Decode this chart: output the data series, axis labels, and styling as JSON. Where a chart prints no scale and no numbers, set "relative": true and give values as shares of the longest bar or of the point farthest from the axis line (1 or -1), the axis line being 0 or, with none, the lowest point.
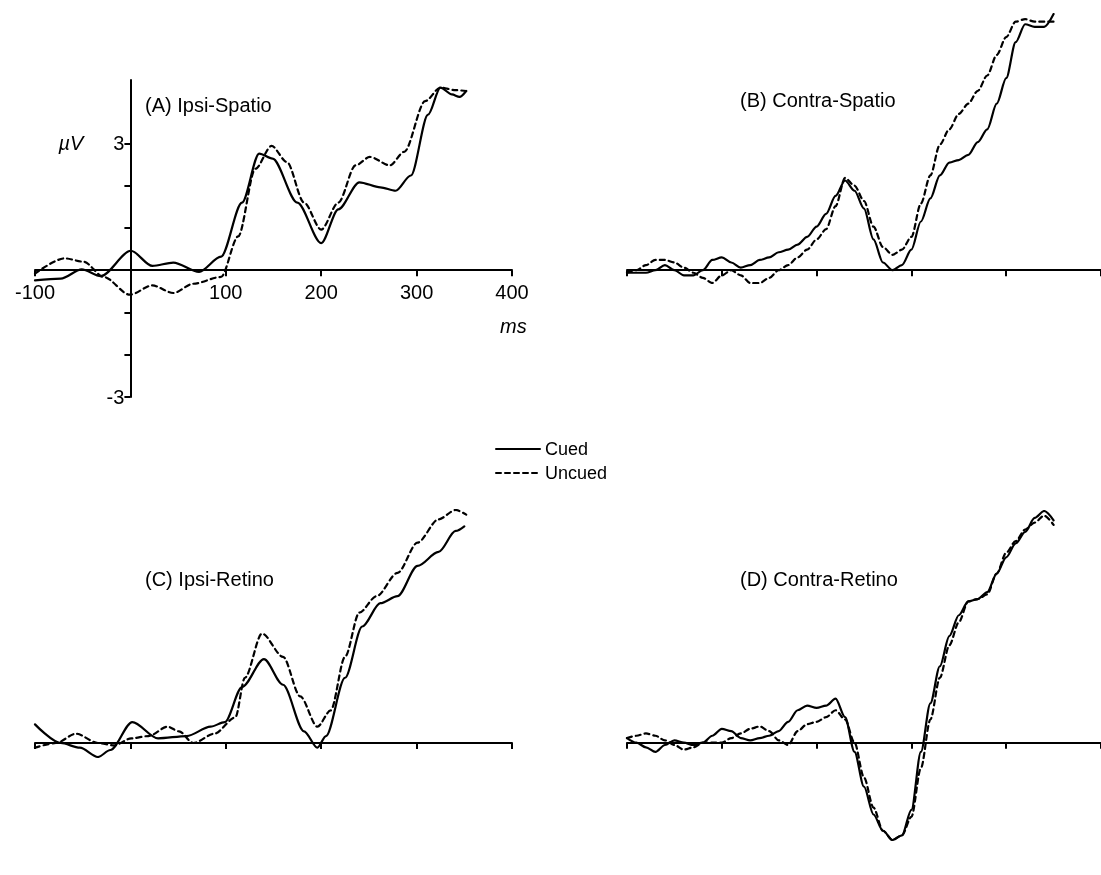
{
  "chart_data": [
    {
      "type": "line",
      "title": "(A) Ipsi-Spatio",
      "xlabel": "ms",
      "ylabel": "µV",
      "xlim": [
        -100,
        400
      ],
      "ylim": [
        -3,
        4.5
      ],
      "xticks": [
        -100,
        {
          "value": 0,
          "label": null
        },
        100,
        200,
        300,
        400
      ],
      "yticks": [
        -3,
        {
          "value": -2,
          "label": null
        },
        {
          "value": -1,
          "label": null
        },
        {
          "value": 0,
          "label": null
        },
        {
          "value": 1,
          "label": null
        },
        {
          "value": 2,
          "label": null
        },
        3
      ],
      "legend": "bottom right",
      "marker": "none",
      "series": [
        {
          "name": "Cued",
          "color": "#000000",
          "line_style": "solid",
          "x": [
            -100,
            -73,
            -51,
            -31,
            0.5,
            23,
            45,
            72,
            95,
            117,
            135,
            149,
            175,
            200,
            218,
            240,
            262,
            278,
            294,
            312,
            325,
            337,
            345,
            352
          ],
          "values": [
            -0.24,
            -0.2,
            0.02,
            -0.14,
            0.46,
            0.1,
            0.18,
            -0.04,
            0.32,
            1.6,
            2.76,
            2.64,
            1.6,
            0.64,
            1.44,
            2.08,
            1.96,
            1.88,
            2.24,
            3.68,
            4.32,
            4.16,
            4.1,
            4.24
          ]
        },
        {
          "name": "Uncued",
          "color": "#000000",
          "line_style": "dashed",
          "x": [
            -100,
            -69,
            -49,
            -28,
            -0.6,
            23,
            45,
            66,
            95,
            113,
            131,
            148,
            164,
            182,
            200,
            218,
            236,
            251,
            272,
            287,
            309,
            325,
            341,
            352
          ],
          "values": [
            -0.08,
            0.28,
            0.2,
            -0.16,
            -0.58,
            -0.36,
            -0.54,
            -0.32,
            -0.16,
            0.8,
            2.4,
            2.94,
            2.56,
            1.6,
            0.96,
            1.6,
            2.48,
            2.68,
            2.48,
            2.8,
            4.0,
            4.32,
            4.26,
            4.24
          ]
        }
      ]
    },
    {
      "type": "line",
      "title": "(B) Contra-Spatio",
      "relative": true,
      "tick_labels": false,
      "marker": "none",
      "categories": [
        null,
        null,
        null,
        null,
        null,
        null,
        null,
        null,
        null,
        null,
        null,
        null,
        null,
        null,
        null,
        null,
        null,
        null,
        null,
        null,
        null,
        null,
        null,
        null,
        null,
        null,
        null,
        null,
        null,
        null,
        null,
        null,
        null,
        null,
        null,
        null,
        null,
        null,
        null,
        null,
        null,
        null,
        null,
        null,
        null,
        null,
        null,
        null,
        null,
        null,
        null
      ],
      "series": [
        {
          "color": "#000000",
          "line_style": "solid",
          "values": [
            -0.01,
            -0.01,
            -0.01,
            0.0,
            0.02,
            0.0,
            -0.02,
            -0.02,
            0.0,
            0.04,
            0.05,
            0.03,
            0.01,
            0.02,
            0.04,
            0.05,
            0.07,
            0.08,
            0.1,
            0.13,
            0.17,
            0.22,
            0.29,
            0.35,
            0.31,
            0.24,
            0.12,
            0.03,
            0.0,
            0.02,
            0.08,
            0.19,
            0.28,
            0.37,
            0.42,
            0.43,
            0.45,
            0.5,
            0.55,
            0.65,
            0.75,
            0.89,
            0.96,
            0.95,
            0.95,
            1,
            null,
            null,
            null,
            null,
            null
          ]
        },
        {
          "color": "#000000",
          "line_style": "dashed",
          "values": [
            -0.01,
            0.0,
            0.02,
            0.04,
            0.04,
            0.03,
            0.01,
            -0.01,
            -0.03,
            -0.05,
            -0.02,
            0.0,
            -0.02,
            -0.05,
            -0.05,
            -0.03,
            0.0,
            0.02,
            0.05,
            0.08,
            0.12,
            0.16,
            0.25,
            0.36,
            0.33,
            0.27,
            0.17,
            0.09,
            0.06,
            0.08,
            0.13,
            0.26,
            0.37,
            0.49,
            0.55,
            0.61,
            0.65,
            0.7,
            0.76,
            0.84,
            0.91,
            0.97,
            0.98,
            0.97,
            0.97,
            0.97,
            null,
            null,
            null,
            null,
            null
          ]
        }
      ]
    },
    {
      "type": "line",
      "title": "(C) Ipsi-Retino",
      "relative": true,
      "xlim": [
        -100,
        400
      ],
      "tick_labels": false,
      "xticks": [
        -100,
        0,
        100,
        200,
        300,
        400
      ],
      "marker": "none",
      "series": [
        {
          "color": "#000000",
          "line_style": "solid",
          "x": [
            -100,
            -73,
            -53,
            -34,
            -21,
            2,
            29,
            59,
            84,
            99,
            117,
            140,
            160,
            182,
            196,
            205,
            225,
            243,
            262,
            280,
            301,
            323,
            341,
            350
          ],
          "values": [
            0.08,
            0,
            -0.02,
            -0.06,
            -0.03,
            0.09,
            0.02,
            0.03,
            0.07,
            0.09,
            0.24,
            0.36,
            0.25,
            0.05,
            -0.02,
            0.03,
            0.28,
            0.5,
            0.6,
            0.63,
            0.76,
            0.82,
            0.91,
            0.93
          ]
        },
        {
          "color": "#000000",
          "line_style": "dashed",
          "x": [
            -100,
            -78,
            -57,
            -34,
            -17,
            1,
            19,
            39,
            51,
            66,
            88,
            110,
            120,
            138,
            160,
            178,
            196,
            210,
            225,
            240,
            258,
            280,
            301,
            323,
            341,
            352
          ],
          "values": [
            -0.02,
            0.0,
            0.04,
            0,
            -0.01,
            0.02,
            0.03,
            0.07,
            0.05,
            0.0,
            0.04,
            0.11,
            0.28,
            0.47,
            0.37,
            0.2,
            0.07,
            0.14,
            0.37,
            0.56,
            0.63,
            0.73,
            0.86,
            0.96,
            1,
            0.98
          ]
        }
      ]
    },
    {
      "type": "line",
      "title": "(D) Contra-Retino",
      "relative": true,
      "tick_labels": false,
      "marker": "none",
      "categories": [
        null,
        null,
        null,
        null,
        null,
        null,
        null,
        null,
        null,
        null,
        null,
        null,
        null,
        null,
        null,
        null,
        null,
        null,
        null,
        null,
        null,
        null,
        null,
        null,
        null,
        null,
        null,
        null,
        null,
        null,
        null,
        null,
        null,
        null,
        null,
        null,
        null,
        null,
        null,
        null,
        null,
        null,
        null,
        null,
        null,
        null,
        null,
        null,
        null,
        null,
        null
      ],
      "series": [
        {
          "color": "#000000",
          "line_style": "solid",
          "values": [
            0.02,
            0.0,
            -0.02,
            -0.04,
            -0.01,
            0.01,
            0.0,
            -0.01,
            0.0,
            0.03,
            0.06,
            0.05,
            0.02,
            0.01,
            0.02,
            0.03,
            0.05,
            0.09,
            0.14,
            0.16,
            0.15,
            0.16,
            0.19,
            0.11,
            -0.04,
            -0.19,
            -0.31,
            -0.38,
            -0.42,
            -0.4,
            -0.29,
            -0.04,
            0.17,
            0.33,
            0.46,
            0.55,
            0.61,
            0.62,
            0.65,
            0.73,
            0.8,
            0.86,
            0.91,
            0.97,
            1.0,
            0.96,
            null,
            null,
            null,
            null,
            null
          ]
        },
        {
          "color": "#000000",
          "line_style": "dashed",
          "values": [
            0.02,
            0.03,
            0.04,
            0.03,
            0.01,
            -0.01,
            -0.03,
            -0.02,
            0.0,
            0.0,
            0.0,
            0.02,
            0.04,
            0.06,
            0.07,
            0.05,
            0.01,
            -0.01,
            0.05,
            0.08,
            0.09,
            0.11,
            0.14,
            0.1,
            0.0,
            -0.15,
            -0.28,
            -0.38,
            -0.42,
            -0.4,
            -0.32,
            -0.11,
            0.1,
            0.28,
            0.42,
            0.52,
            0.61,
            0.62,
            0.64,
            0.73,
            0.82,
            0.87,
            0.92,
            0.95,
            0.98,
            0.94,
            null,
            null,
            null,
            null,
            null
          ]
        }
      ]
    }
  ]
}
